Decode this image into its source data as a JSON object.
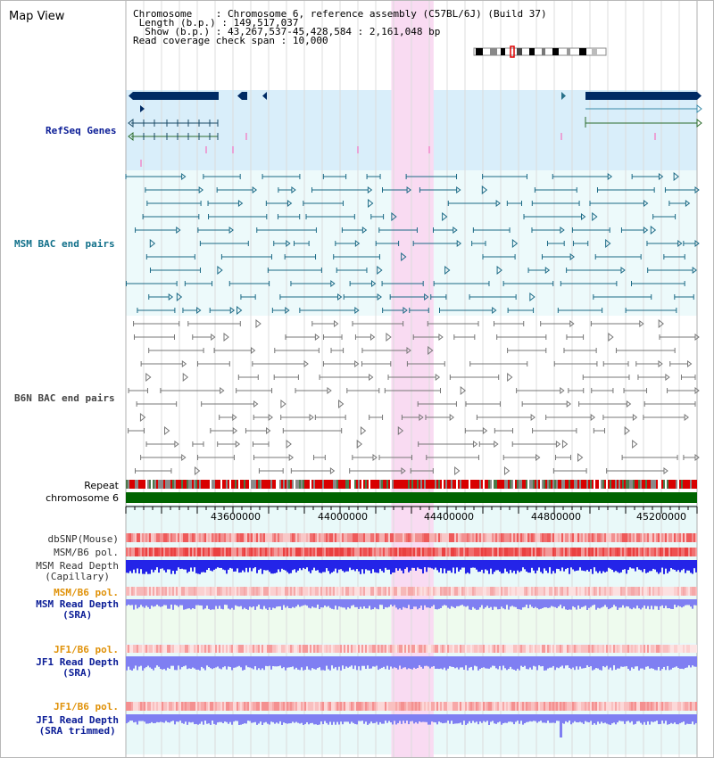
{
  "view": {
    "title": "Map View"
  },
  "info": {
    "chromosome_label": "Chromosome",
    "chromosome_value": "Chromosome 6, reference assembly (C57BL/6J) (Build 37)",
    "length_label": "Length (b.p.)",
    "length_value": "149,517,037",
    "show_label": "Show (b.p.)",
    "show_value": "43,267,537-45,428,584 : 2,161,048 bp",
    "coverage_label": "Read coverage check span",
    "coverage_value": "10,000"
  },
  "axis": {
    "start": 43267537,
    "end": 45428584,
    "ticks": [
      "43600000",
      "44000000",
      "44400000",
      "44800000",
      "45200000"
    ],
    "highlight": [
      44272000,
      44432000
    ]
  },
  "tracks": {
    "refseq": "RefSeq Genes",
    "msm_bac": "MSM BAC end pairs",
    "b6n_bac": "B6N BAC end pairs",
    "repeat": "Repeat",
    "chromosome": "chromosome 6",
    "dbsnp": "dbSNP(Mouse)",
    "msm_pol_1": "MSM/B6 pol.",
    "msm_depth_cap_1": "MSM Read Depth",
    "msm_depth_cap_2": "(Capillary)",
    "msm_pol_2": "MSM/B6 pol.",
    "msm_depth_sra_1": "MSM Read Depth",
    "msm_depth_sra_2": "(SRA)",
    "jf1_pol_1": "JF1/B6 pol.",
    "jf1_depth_sra_1": "JF1 Read Depth",
    "jf1_depth_sra_2": "(SRA)",
    "jf1_pol_2": "JF1/B6 pol.",
    "jf1_depth_trim_1": "JF1 Read Depth",
    "jf1_depth_trim_2": "(SRA trimmed)"
  },
  "colors": {
    "refseq_bg": "#d9eefa",
    "bac_bg": "#edfafb",
    "highlight": "#f9dbf2",
    "gene_dark": "#002a64",
    "msm_bac": "#1c6a86",
    "b6n_bac": "#777777",
    "chromosome": "#006400",
    "depth_cap": "#2424e8",
    "depth_sra": "#7f7ff2"
  }
}
